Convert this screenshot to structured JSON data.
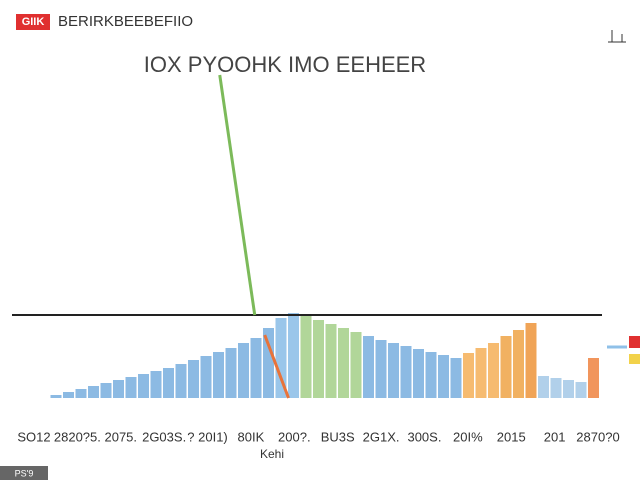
{
  "chart_data": {
    "type": "bar",
    "badge": "GIIK",
    "header": "BERIRKBEEBEFIIO",
    "title": "IOX PYOOHK IMO EEHEER",
    "x_label": "Kehi",
    "footer": "PS'9",
    "x_labels": [
      "SO12",
      "2820?5.",
      "2075.",
      "2G03S.",
      "? 20I1)",
      "80IK",
      "200?.",
      "BU3S",
      "2G1X.",
      "300S.",
      "20I%",
      "2015",
      "201",
      "2870?0"
    ],
    "values": [
      3,
      6,
      9,
      12,
      15,
      18,
      21,
      24,
      27,
      30,
      34,
      38,
      42,
      46,
      50,
      55,
      60,
      70,
      80,
      85,
      82,
      78,
      74,
      70,
      66,
      62,
      58,
      55,
      52,
      49,
      46,
      43,
      40,
      45,
      50,
      55,
      62,
      68,
      75,
      22,
      20,
      18,
      16,
      40
    ],
    "colors": [
      "#7fb3e0",
      "#7fb3e0",
      "#7fb3e0",
      "#7fb3e0",
      "#7fb3e0",
      "#7fb3e0",
      "#7fb3e0",
      "#7fb3e0",
      "#7fb3e0",
      "#7fb3e0",
      "#7fb3e0",
      "#7fb3e0",
      "#7fb3e0",
      "#7fb3e0",
      "#7fb3e0",
      "#7fb3e0",
      "#7fb3e0",
      "#7fb3e0",
      "#8fc0e8",
      "#8fc0e8",
      "#a9d18e",
      "#a9d18e",
      "#a9d18e",
      "#a9d18e",
      "#a9d18e",
      "#7fb3e0",
      "#7fb3e0",
      "#7fb3e0",
      "#7fb3e0",
      "#7fb3e0",
      "#7fb3e0",
      "#7fb3e0",
      "#7fb3e0",
      "#f5b461",
      "#f5b461",
      "#f5b461",
      "#f0a850",
      "#f0a850",
      "#ee9a45",
      "#a8cbe8",
      "#a8cbe8",
      "#a8cbe8",
      "#a8cbe8",
      "#ef8a4a"
    ],
    "lines": [
      {
        "color": "#7cba5a",
        "x": [
          13.1,
          15.9
        ],
        "values": [
          323,
          83
        ]
      },
      {
        "color": "#e8733a",
        "x": [
          16.7,
          18.6
        ],
        "values": [
          63,
          0
        ]
      }
    ],
    "reference_line": 83,
    "ylim": [
      0,
      330
    ]
  }
}
